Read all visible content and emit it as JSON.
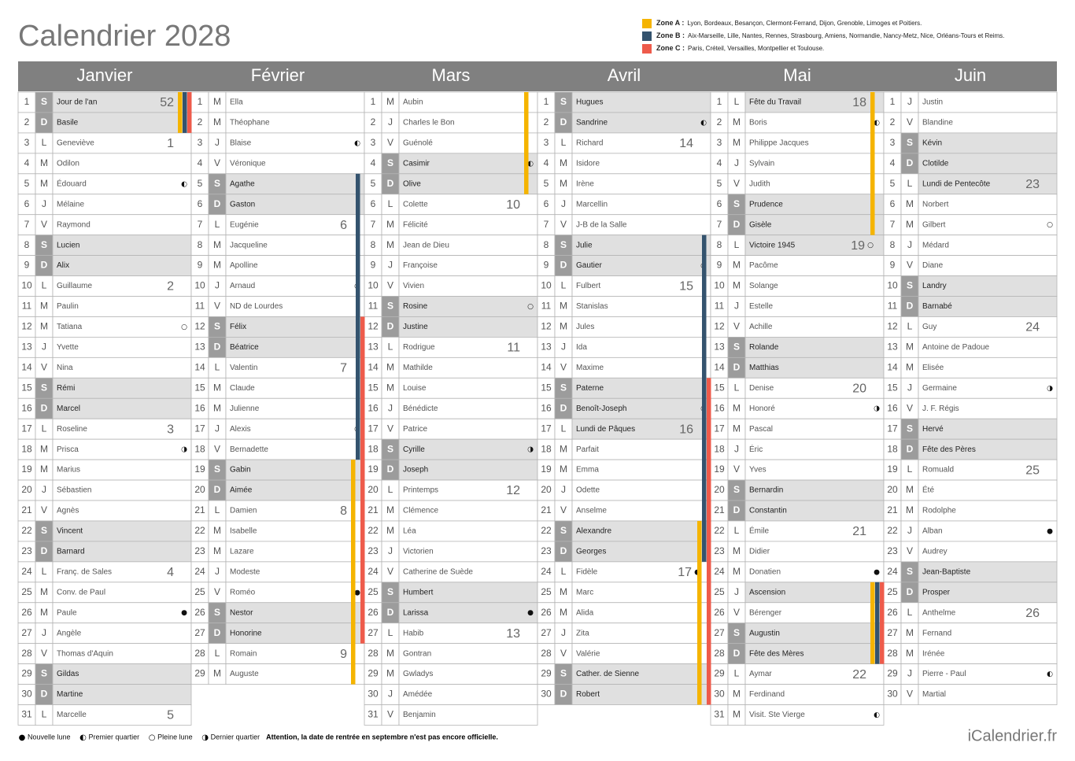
{
  "title": "Calendrier 2028",
  "zones": [
    {
      "label": "Zone A :",
      "text": "Lyon, Bordeaux, Besançon, Clermont-Ferrand, Dijon, Grenoble, Limoges et Poitiers.",
      "color": "#f5b400"
    },
    {
      "label": "Zone B :",
      "text": "Aix-Marseille, Lille, Nantes, Rennes, Strasbourg, Amiens, Normandie, Nancy-Metz, Nice, Orléans-Tours et Reims.",
      "color": "#34536e"
    },
    {
      "label": "Zone C :",
      "text": "Paris, Créteil, Versailles, Montpellier et Toulouse.",
      "color": "#ee5b4b"
    }
  ],
  "months": [
    {
      "name": "Janvier",
      "days": [
        {
          "n": 1,
          "l": "S",
          "t": "Jour de l'an",
          "w": 52
        },
        {
          "n": 2,
          "l": "D",
          "t": "Basile"
        },
        {
          "n": 3,
          "l": "L",
          "t": "Geneviève",
          "w": 1
        },
        {
          "n": 4,
          "l": "M",
          "t": "Odilon"
        },
        {
          "n": 5,
          "l": "M",
          "t": "Édouard",
          "m": "◐"
        },
        {
          "n": 6,
          "l": "J",
          "t": "Mélaine"
        },
        {
          "n": 7,
          "l": "V",
          "t": "Raymond"
        },
        {
          "n": 8,
          "l": "S",
          "t": "Lucien"
        },
        {
          "n": 9,
          "l": "D",
          "t": "Alix"
        },
        {
          "n": 10,
          "l": "L",
          "t": "Guillaume",
          "w": 2
        },
        {
          "n": 11,
          "l": "M",
          "t": "Paulin"
        },
        {
          "n": 12,
          "l": "M",
          "t": "Tatiana",
          "m": "○"
        },
        {
          "n": 13,
          "l": "J",
          "t": "Yvette"
        },
        {
          "n": 14,
          "l": "V",
          "t": "Nina"
        },
        {
          "n": 15,
          "l": "S",
          "t": "Rémi"
        },
        {
          "n": 16,
          "l": "D",
          "t": "Marcel"
        },
        {
          "n": 17,
          "l": "L",
          "t": "Roseline",
          "w": 3
        },
        {
          "n": 18,
          "l": "M",
          "t": "Prisca",
          "m": "◑"
        },
        {
          "n": 19,
          "l": "M",
          "t": "Marius"
        },
        {
          "n": 20,
          "l": "J",
          "t": "Sébastien"
        },
        {
          "n": 21,
          "l": "V",
          "t": "Agnès"
        },
        {
          "n": 22,
          "l": "S",
          "t": "Vincent"
        },
        {
          "n": 23,
          "l": "D",
          "t": "Barnard"
        },
        {
          "n": 24,
          "l": "L",
          "t": "Franç. de Sales",
          "w": 4
        },
        {
          "n": 25,
          "l": "M",
          "t": "Conv. de Paul"
        },
        {
          "n": 26,
          "l": "M",
          "t": "Paule",
          "m": "●"
        },
        {
          "n": 27,
          "l": "J",
          "t": "Angèle"
        },
        {
          "n": 28,
          "l": "V",
          "t": "Thomas d'Aquin"
        },
        {
          "n": 29,
          "l": "S",
          "t": "Gildas"
        },
        {
          "n": 30,
          "l": "D",
          "t": "Martine"
        },
        {
          "n": 31,
          "l": "L",
          "t": "Marcelle",
          "w": 5
        }
      ]
    },
    {
      "name": "Février",
      "days": [
        {
          "n": 1,
          "l": "M",
          "t": "Ella"
        },
        {
          "n": 2,
          "l": "M",
          "t": "Théophane"
        },
        {
          "n": 3,
          "l": "J",
          "t": "Blaise",
          "m": "◐"
        },
        {
          "n": 4,
          "l": "V",
          "t": "Véronique"
        },
        {
          "n": 5,
          "l": "S",
          "t": "Agathe"
        },
        {
          "n": 6,
          "l": "D",
          "t": "Gaston"
        },
        {
          "n": 7,
          "l": "L",
          "t": "Eugénie",
          "w": 6
        },
        {
          "n": 8,
          "l": "M",
          "t": "Jacqueline"
        },
        {
          "n": 9,
          "l": "M",
          "t": "Apolline"
        },
        {
          "n": 10,
          "l": "J",
          "t": "Arnaud",
          "m": "○"
        },
        {
          "n": 11,
          "l": "V",
          "t": "ND de Lourdes"
        },
        {
          "n": 12,
          "l": "S",
          "t": "Félix"
        },
        {
          "n": 13,
          "l": "D",
          "t": "Béatrice"
        },
        {
          "n": 14,
          "l": "L",
          "t": "Valentin",
          "w": 7
        },
        {
          "n": 15,
          "l": "M",
          "t": "Claude"
        },
        {
          "n": 16,
          "l": "M",
          "t": "Julienne"
        },
        {
          "n": 17,
          "l": "J",
          "t": "Alexis",
          "m": "◑"
        },
        {
          "n": 18,
          "l": "V",
          "t": "Bernadette"
        },
        {
          "n": 19,
          "l": "S",
          "t": "Gabin"
        },
        {
          "n": 20,
          "l": "D",
          "t": "Aimée"
        },
        {
          "n": 21,
          "l": "L",
          "t": "Damien",
          "w": 8
        },
        {
          "n": 22,
          "l": "M",
          "t": "Isabelle"
        },
        {
          "n": 23,
          "l": "M",
          "t": "Lazare"
        },
        {
          "n": 24,
          "l": "J",
          "t": "Modeste"
        },
        {
          "n": 25,
          "l": "V",
          "t": "Roméo",
          "m": "●"
        },
        {
          "n": 26,
          "l": "S",
          "t": "Nestor"
        },
        {
          "n": 27,
          "l": "D",
          "t": "Honorine"
        },
        {
          "n": 28,
          "l": "L",
          "t": "Romain",
          "w": 9
        },
        {
          "n": 29,
          "l": "M",
          "t": "Auguste"
        }
      ]
    },
    {
      "name": "Mars",
      "days": [
        {
          "n": 1,
          "l": "M",
          "t": "Aubin"
        },
        {
          "n": 2,
          "l": "J",
          "t": "Charles le Bon"
        },
        {
          "n": 3,
          "l": "V",
          "t": "Guénolé"
        },
        {
          "n": 4,
          "l": "S",
          "t": "Casimir",
          "m": "◐"
        },
        {
          "n": 5,
          "l": "D",
          "t": "Olive"
        },
        {
          "n": 6,
          "l": "L",
          "t": "Colette",
          "w": 10
        },
        {
          "n": 7,
          "l": "M",
          "t": "Félicité"
        },
        {
          "n": 8,
          "l": "M",
          "t": "Jean de Dieu"
        },
        {
          "n": 9,
          "l": "J",
          "t": "Françoise"
        },
        {
          "n": 10,
          "l": "V",
          "t": "Vivien"
        },
        {
          "n": 11,
          "l": "S",
          "t": "Rosine",
          "m": "○"
        },
        {
          "n": 12,
          "l": "D",
          "t": "Justine"
        },
        {
          "n": 13,
          "l": "L",
          "t": "Rodrigue",
          "w": 11
        },
        {
          "n": 14,
          "l": "M",
          "t": "Mathilde"
        },
        {
          "n": 15,
          "l": "M",
          "t": "Louise"
        },
        {
          "n": 16,
          "l": "J",
          "t": "Bénédicte"
        },
        {
          "n": 17,
          "l": "V",
          "t": "Patrice"
        },
        {
          "n": 18,
          "l": "S",
          "t": "Cyrille",
          "m": "◑"
        },
        {
          "n": 19,
          "l": "D",
          "t": "Joseph"
        },
        {
          "n": 20,
          "l": "L",
          "t": "Printemps",
          "w": 12
        },
        {
          "n": 21,
          "l": "M",
          "t": "Clémence"
        },
        {
          "n": 22,
          "l": "M",
          "t": "Léa"
        },
        {
          "n": 23,
          "l": "J",
          "t": "Victorien"
        },
        {
          "n": 24,
          "l": "V",
          "t": "Catherine de Suède"
        },
        {
          "n": 25,
          "l": "S",
          "t": "Humbert"
        },
        {
          "n": 26,
          "l": "D",
          "t": "Larissa",
          "m": "●"
        },
        {
          "n": 27,
          "l": "L",
          "t": "Habib",
          "w": 13
        },
        {
          "n": 28,
          "l": "M",
          "t": "Gontran"
        },
        {
          "n": 29,
          "l": "M",
          "t": "Gwladys"
        },
        {
          "n": 30,
          "l": "J",
          "t": "Amédée"
        },
        {
          "n": 31,
          "l": "V",
          "t": "Benjamin"
        }
      ]
    },
    {
      "name": "Avril",
      "days": [
        {
          "n": 1,
          "l": "S",
          "t": "Hugues"
        },
        {
          "n": 2,
          "l": "D",
          "t": "Sandrine",
          "m": "◐"
        },
        {
          "n": 3,
          "l": "L",
          "t": "Richard",
          "w": 14
        },
        {
          "n": 4,
          "l": "M",
          "t": "Isidore"
        },
        {
          "n": 5,
          "l": "M",
          "t": "Irène"
        },
        {
          "n": 6,
          "l": "J",
          "t": "Marcellin"
        },
        {
          "n": 7,
          "l": "V",
          "t": "J-B de la Salle"
        },
        {
          "n": 8,
          "l": "S",
          "t": "Julie"
        },
        {
          "n": 9,
          "l": "D",
          "t": "Gautier",
          "m": "○"
        },
        {
          "n": 10,
          "l": "L",
          "t": "Fulbert",
          "w": 15
        },
        {
          "n": 11,
          "l": "M",
          "t": "Stanislas"
        },
        {
          "n": 12,
          "l": "M",
          "t": "Jules"
        },
        {
          "n": 13,
          "l": "J",
          "t": "Ida"
        },
        {
          "n": 14,
          "l": "V",
          "t": "Maxime"
        },
        {
          "n": 15,
          "l": "S",
          "t": "Paterne"
        },
        {
          "n": 16,
          "l": "D",
          "t": "Benoît-Joseph",
          "m": "◑"
        },
        {
          "n": 17,
          "l": "L",
          "t": "Lundi de Pâques",
          "w": 16
        },
        {
          "n": 18,
          "l": "M",
          "t": "Parfait"
        },
        {
          "n": 19,
          "l": "M",
          "t": "Emma"
        },
        {
          "n": 20,
          "l": "J",
          "t": "Odette"
        },
        {
          "n": 21,
          "l": "V",
          "t": "Anselme"
        },
        {
          "n": 22,
          "l": "S",
          "t": "Alexandre"
        },
        {
          "n": 23,
          "l": "D",
          "t": "Georges"
        },
        {
          "n": 24,
          "l": "L",
          "t": "Fidèle",
          "w": 17,
          "m": "●"
        },
        {
          "n": 25,
          "l": "M",
          "t": "Marc"
        },
        {
          "n": 26,
          "l": "M",
          "t": "Alida"
        },
        {
          "n": 27,
          "l": "J",
          "t": "Zita"
        },
        {
          "n": 28,
          "l": "V",
          "t": "Valérie"
        },
        {
          "n": 29,
          "l": "S",
          "t": "Cather. de Sienne"
        },
        {
          "n": 30,
          "l": "D",
          "t": "Robert"
        }
      ]
    },
    {
      "name": "Mai",
      "days": [
        {
          "n": 1,
          "l": "L",
          "t": "Fête du Travail",
          "w": 18
        },
        {
          "n": 2,
          "l": "M",
          "t": "Boris",
          "m": "◐"
        },
        {
          "n": 3,
          "l": "M",
          "t": "Philippe Jacques"
        },
        {
          "n": 4,
          "l": "J",
          "t": "Sylvain"
        },
        {
          "n": 5,
          "l": "V",
          "t": "Judith"
        },
        {
          "n": 6,
          "l": "S",
          "t": "Prudence"
        },
        {
          "n": 7,
          "l": "D",
          "t": "Gisèle"
        },
        {
          "n": 8,
          "l": "L",
          "t": "Victoire 1945",
          "w": 19,
          "m": "○"
        },
        {
          "n": 9,
          "l": "M",
          "t": "Pacôme"
        },
        {
          "n": 10,
          "l": "M",
          "t": "Solange"
        },
        {
          "n": 11,
          "l": "J",
          "t": "Estelle"
        },
        {
          "n": 12,
          "l": "V",
          "t": "Achille"
        },
        {
          "n": 13,
          "l": "S",
          "t": "Rolande"
        },
        {
          "n": 14,
          "l": "D",
          "t": "Matthias"
        },
        {
          "n": 15,
          "l": "L",
          "t": "Denise",
          "w": 20
        },
        {
          "n": 16,
          "l": "M",
          "t": "Honoré",
          "m": "◑"
        },
        {
          "n": 17,
          "l": "M",
          "t": "Pascal"
        },
        {
          "n": 18,
          "l": "J",
          "t": "Éric"
        },
        {
          "n": 19,
          "l": "V",
          "t": "Yves"
        },
        {
          "n": 20,
          "l": "S",
          "t": "Bernardin"
        },
        {
          "n": 21,
          "l": "D",
          "t": "Constantin"
        },
        {
          "n": 22,
          "l": "L",
          "t": "Émile",
          "w": 21
        },
        {
          "n": 23,
          "l": "M",
          "t": "Didier"
        },
        {
          "n": 24,
          "l": "M",
          "t": "Donatien",
          "m": "●"
        },
        {
          "n": 25,
          "l": "J",
          "t": "Ascension"
        },
        {
          "n": 26,
          "l": "V",
          "t": "Bérenger"
        },
        {
          "n": 27,
          "l": "S",
          "t": "Augustin"
        },
        {
          "n": 28,
          "l": "D",
          "t": "Fête des Mères"
        },
        {
          "n": 29,
          "l": "L",
          "t": "Aymar",
          "w": 22
        },
        {
          "n": 30,
          "l": "M",
          "t": "Ferdinand"
        },
        {
          "n": 31,
          "l": "M",
          "t": "Visit. Ste Vierge",
          "m": "◐"
        }
      ]
    },
    {
      "name": "Juin",
      "days": [
        {
          "n": 1,
          "l": "J",
          "t": "Justin"
        },
        {
          "n": 2,
          "l": "V",
          "t": "Blandine"
        },
        {
          "n": 3,
          "l": "S",
          "t": "Kévin"
        },
        {
          "n": 4,
          "l": "D",
          "t": "Clotilde"
        },
        {
          "n": 5,
          "l": "L",
          "t": "Lundi de Pentecôte",
          "w": 23
        },
        {
          "n": 6,
          "l": "M",
          "t": "Norbert"
        },
        {
          "n": 7,
          "l": "M",
          "t": "Gilbert",
          "m": "○"
        },
        {
          "n": 8,
          "l": "J",
          "t": "Médard"
        },
        {
          "n": 9,
          "l": "V",
          "t": "Diane"
        },
        {
          "n": 10,
          "l": "S",
          "t": "Landry"
        },
        {
          "n": 11,
          "l": "D",
          "t": "Barnabé"
        },
        {
          "n": 12,
          "l": "L",
          "t": "Guy",
          "w": 24
        },
        {
          "n": 13,
          "l": "M",
          "t": "Antoine de Padoue"
        },
        {
          "n": 14,
          "l": "M",
          "t": "Elisée"
        },
        {
          "n": 15,
          "l": "J",
          "t": "Germaine",
          "m": "◑"
        },
        {
          "n": 16,
          "l": "V",
          "t": "J. F. Régis"
        },
        {
          "n": 17,
          "l": "S",
          "t": "Hervé"
        },
        {
          "n": 18,
          "l": "D",
          "t": "Fête des Pères"
        },
        {
          "n": 19,
          "l": "L",
          "t": "Romuald",
          "w": 25
        },
        {
          "n": 20,
          "l": "M",
          "t": "Été"
        },
        {
          "n": 21,
          "l": "M",
          "t": "Rodolphe"
        },
        {
          "n": 22,
          "l": "J",
          "t": "Alban",
          "m": "●"
        },
        {
          "n": 23,
          "l": "V",
          "t": "Audrey"
        },
        {
          "n": 24,
          "l": "S",
          "t": "Jean-Baptiste"
        },
        {
          "n": 25,
          "l": "D",
          "t": "Prosper"
        },
        {
          "n": 26,
          "l": "L",
          "t": "Anthelme",
          "w": 26
        },
        {
          "n": 27,
          "l": "M",
          "t": "Fernand"
        },
        {
          "n": 28,
          "l": "M",
          "t": "Irénée"
        },
        {
          "n": 29,
          "l": "J",
          "t": "Pierre - Paul",
          "m": "◐"
        },
        {
          "n": 30,
          "l": "V",
          "t": "Martial"
        }
      ]
    }
  ],
  "legend": [
    {
      "symbol": "●",
      "label": "Nouvelle lune"
    },
    {
      "symbol": "◐",
      "label": "Premier quartier"
    },
    {
      "symbol": "○",
      "label": "Pleine lune"
    },
    {
      "symbol": "◑",
      "label": "Dernier quartier"
    }
  ],
  "notice": "Attention, la date de rentrée en septembre n'est pas encore officielle.",
  "brand": "iCalendrier.fr"
}
